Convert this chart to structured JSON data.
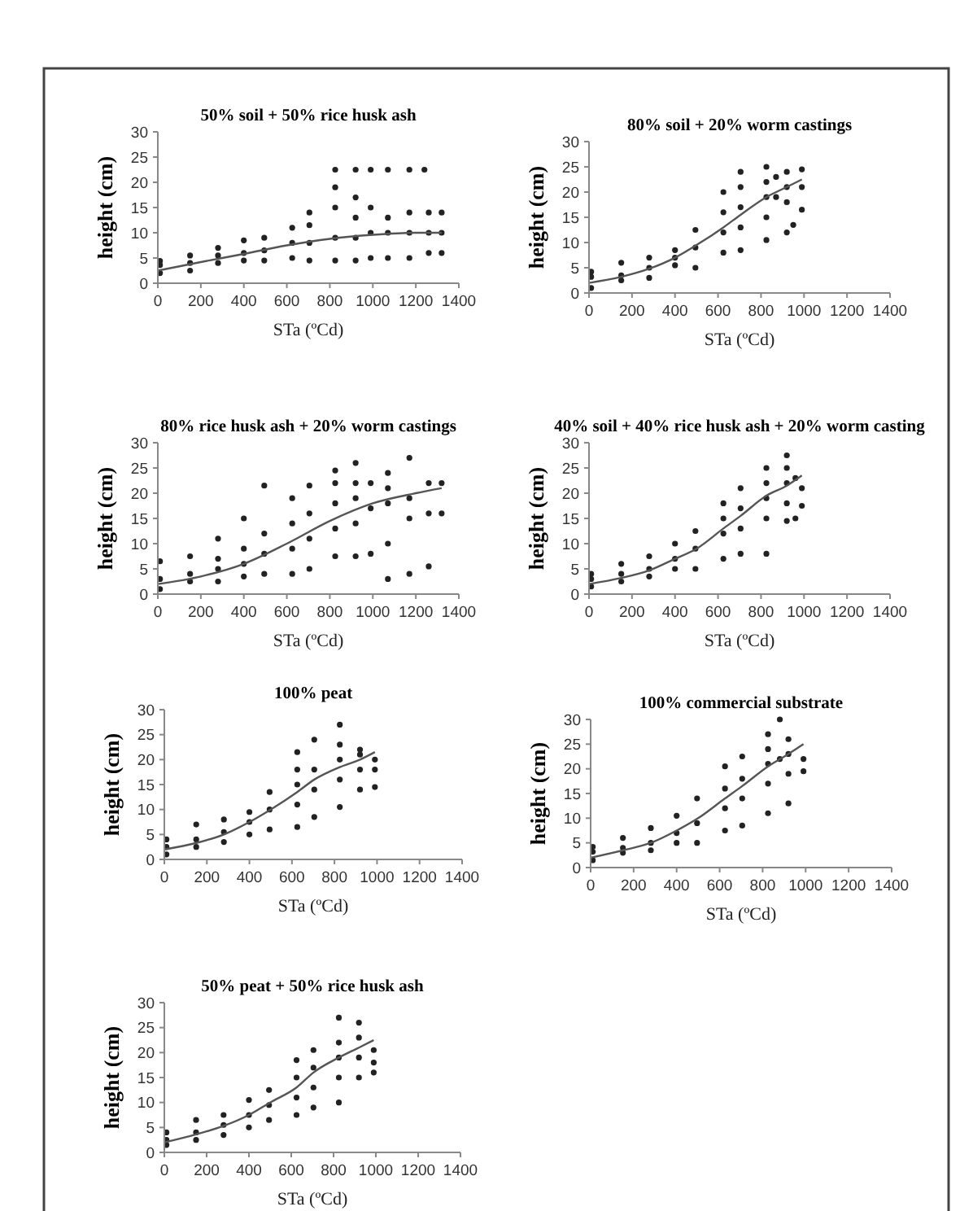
{
  "chart_data": [
    {
      "type": "scatter",
      "title": "50% soil + 50% rice husk ash",
      "xlabel": "STa (ºCd)",
      "ylabel": "height (cm)",
      "xlim": [
        0,
        1400
      ],
      "xticks": [
        0,
        200,
        400,
        600,
        800,
        1000,
        1200,
        1400
      ],
      "ylim": [
        0,
        30
      ],
      "yticks": [
        0,
        5,
        10,
        15,
        20,
        25,
        30
      ],
      "series": [
        {
          "type": "scatter",
          "color": "#222222",
          "x": [
            10,
            10,
            10,
            150,
            150,
            150,
            280,
            280,
            280,
            400,
            400,
            400,
            495,
            495,
            495,
            625,
            625,
            625,
            705,
            705,
            705,
            705,
            825,
            825,
            825,
            825,
            825,
            920,
            920,
            920,
            920,
            920,
            990,
            990,
            990,
            990,
            1070,
            1070,
            1070,
            1070,
            1170,
            1170,
            1170,
            1170,
            1240,
            1260,
            1260,
            1260,
            1320,
            1320,
            1320
          ],
          "values": [
            2,
            3.6,
            4.4,
            2.5,
            4,
            5.5,
            4,
            5.5,
            7,
            4.5,
            6,
            8.5,
            4.5,
            6.5,
            9,
            5,
            8,
            11,
            4.5,
            8,
            11.5,
            14,
            4.5,
            9,
            15,
            19,
            22.5,
            4.5,
            9,
            13,
            17,
            22.5,
            5,
            10,
            15,
            22.5,
            5,
            10,
            13,
            22.5,
            5,
            10,
            14,
            22.5,
            22.5,
            6,
            10,
            14,
            6,
            10,
            14
          ]
        },
        {
          "type": "line",
          "color": "#555555",
          "x": [
            0,
            200,
            400,
            600,
            800,
            1000,
            1200,
            1320
          ],
          "values": [
            2.5,
            4.2,
            5.8,
            7.5,
            8.8,
            9.6,
            10,
            10
          ]
        }
      ]
    },
    {
      "type": "scatter",
      "title": "80% soil + 20% worm castings",
      "xlabel": "STa (ºCd)",
      "ylabel": "height (cm)",
      "xlim": [
        0,
        1400
      ],
      "xticks": [
        0,
        200,
        400,
        600,
        800,
        1000,
        1200,
        1400
      ],
      "ylim": [
        0,
        30
      ],
      "yticks": [
        0,
        5,
        10,
        15,
        20,
        25,
        30
      ],
      "series": [
        {
          "type": "scatter",
          "color": "#222222",
          "x": [
            10,
            10,
            10,
            150,
            150,
            150,
            280,
            280,
            280,
            400,
            400,
            400,
            495,
            495,
            495,
            625,
            625,
            625,
            625,
            705,
            705,
            705,
            705,
            705,
            825,
            825,
            825,
            825,
            825,
            870,
            870,
            920,
            920,
            920,
            920,
            950,
            990,
            990,
            990
          ],
          "values": [
            1,
            3.2,
            4.2,
            2.5,
            3.5,
            6,
            3,
            5,
            7,
            5.5,
            7,
            8.5,
            5,
            9,
            12.5,
            8,
            12,
            16,
            20,
            8.5,
            13,
            17,
            21,
            24,
            10.5,
            15,
            19,
            22,
            25,
            19,
            23,
            12,
            18,
            21,
            24,
            13.5,
            16.5,
            21,
            24.5
          ]
        },
        {
          "type": "line",
          "color": "#555555",
          "x": [
            0,
            150,
            280,
            400,
            500,
            625,
            705,
            825,
            920,
            990
          ],
          "values": [
            2,
            3.2,
            4.8,
            7,
            9.5,
            13,
            15.5,
            19,
            21,
            22.5
          ]
        }
      ]
    },
    {
      "type": "scatter",
      "title": "80% rice husk ash + 20% worm castings",
      "xlabel": "STa (ºCd)",
      "ylabel": "height (cm)",
      "xlim": [
        0,
        1400
      ],
      "xticks": [
        0,
        200,
        400,
        600,
        800,
        1000,
        1200,
        1400
      ],
      "ylim": [
        0,
        30
      ],
      "yticks": [
        0,
        5,
        10,
        15,
        20,
        25,
        30
      ],
      "series": [
        {
          "type": "scatter",
          "color": "#222222",
          "x": [
            10,
            10,
            10,
            150,
            150,
            150,
            280,
            280,
            280,
            280,
            400,
            400,
            400,
            400,
            495,
            495,
            495,
            495,
            625,
            625,
            625,
            625,
            705,
            705,
            705,
            705,
            825,
            825,
            825,
            825,
            825,
            920,
            920,
            920,
            920,
            920,
            990,
            990,
            990,
            1070,
            1070,
            1070,
            1070,
            1070,
            1170,
            1170,
            1170,
            1170,
            1260,
            1260,
            1260,
            1320,
            1320
          ],
          "values": [
            1,
            3,
            6.5,
            2.5,
            4,
            7.5,
            2.5,
            5,
            7,
            11,
            3.5,
            6,
            9,
            15,
            4,
            8,
            12,
            21.5,
            4,
            9,
            14,
            19,
            5,
            11,
            16,
            21.5,
            7.5,
            13,
            18,
            22,
            24.5,
            7.5,
            14,
            19,
            22,
            26,
            8,
            17,
            22,
            3,
            10,
            18,
            21,
            24,
            4,
            15,
            19,
            27,
            5.5,
            16,
            22,
            16,
            22
          ]
        },
        {
          "type": "line",
          "color": "#555555",
          "x": [
            0,
            200,
            400,
            600,
            800,
            1000,
            1200,
            1320
          ],
          "values": [
            2,
            3.5,
            6,
            10,
            14.5,
            18,
            20,
            21
          ]
        }
      ]
    },
    {
      "type": "scatter",
      "title": "40% soil + 40% rice husk ash + 20% worm casting",
      "xlabel": "STa (ºCd)",
      "ylabel": "height (cm)",
      "xlim": [
        0,
        1400
      ],
      "xticks": [
        0,
        200,
        400,
        600,
        800,
        1000,
        1200,
        1400
      ],
      "ylim": [
        0,
        30
      ],
      "yticks": [
        0,
        5,
        10,
        15,
        20,
        25,
        30
      ],
      "series": [
        {
          "type": "scatter",
          "color": "#222222",
          "x": [
            10,
            10,
            10,
            150,
            150,
            150,
            280,
            280,
            280,
            400,
            400,
            400,
            495,
            495,
            495,
            625,
            625,
            625,
            625,
            705,
            705,
            705,
            705,
            825,
            825,
            825,
            825,
            825,
            920,
            920,
            920,
            920,
            920,
            960,
            960,
            990,
            990
          ],
          "values": [
            1.5,
            3,
            4,
            2.5,
            4,
            6,
            3.5,
            5,
            7.5,
            5,
            7,
            10,
            5,
            9,
            12.5,
            7,
            12,
            15,
            18,
            8,
            13,
            17,
            21,
            8,
            15,
            19,
            22,
            25,
            14.5,
            18,
            22,
            25,
            27.5,
            15,
            23,
            17.5,
            21
          ]
        },
        {
          "type": "line",
          "color": "#555555",
          "x": [
            0,
            150,
            280,
            400,
            500,
            625,
            705,
            825,
            920,
            990
          ],
          "values": [
            2,
            3.2,
            4.7,
            7,
            9,
            13,
            15.5,
            19.5,
            21.5,
            23.5
          ]
        }
      ]
    },
    {
      "type": "scatter",
      "title": "100% peat",
      "xlabel": "STa (ºCd)",
      "ylabel": "height (cm)",
      "xlim": [
        0,
        1400
      ],
      "xticks": [
        0,
        200,
        400,
        600,
        800,
        1000,
        1200,
        1400
      ],
      "ylim": [
        0,
        30
      ],
      "yticks": [
        0,
        5,
        10,
        15,
        20,
        25,
        30
      ],
      "series": [
        {
          "type": "scatter",
          "color": "#222222",
          "x": [
            10,
            10,
            10,
            150,
            150,
            150,
            280,
            280,
            280,
            400,
            400,
            400,
            495,
            495,
            495,
            625,
            625,
            625,
            625,
            625,
            705,
            705,
            705,
            705,
            825,
            825,
            825,
            825,
            825,
            920,
            920,
            920,
            920,
            990,
            990,
            990
          ],
          "values": [
            1,
            2.5,
            4,
            2.5,
            4,
            7,
            3.5,
            5.5,
            8,
            5,
            7.5,
            9.5,
            6,
            10,
            13.5,
            6.5,
            11,
            15,
            18,
            21.5,
            8.5,
            14,
            18,
            24,
            10.5,
            16,
            20,
            23,
            27,
            14,
            18,
            21,
            22,
            14.5,
            18,
            20
          ]
        },
        {
          "type": "line",
          "color": "#555555",
          "x": [
            0,
            150,
            280,
            400,
            500,
            625,
            705,
            825,
            920,
            990
          ],
          "values": [
            2,
            3.3,
            5,
            7.5,
            10,
            13.5,
            16,
            18.5,
            20,
            21.5
          ]
        }
      ]
    },
    {
      "type": "scatter",
      "title": "100% commercial substrate",
      "xlabel": "STa (ºCd)",
      "ylabel": "height (cm)",
      "xlim": [
        0,
        1400
      ],
      "xticks": [
        0,
        200,
        400,
        600,
        800,
        1000,
        1200,
        1400
      ],
      "ylim": [
        0,
        30
      ],
      "yticks": [
        0,
        5,
        10,
        15,
        20,
        25,
        30
      ],
      "series": [
        {
          "type": "scatter",
          "color": "#222222",
          "x": [
            10,
            10,
            10,
            150,
            150,
            150,
            280,
            280,
            280,
            400,
            400,
            400,
            495,
            495,
            495,
            625,
            625,
            625,
            625,
            705,
            705,
            705,
            705,
            825,
            825,
            825,
            825,
            825,
            880,
            880,
            920,
            920,
            920,
            920,
            990,
            990
          ],
          "values": [
            1.5,
            3.2,
            4.2,
            3,
            4,
            6,
            3.5,
            5,
            8,
            5,
            7,
            10.5,
            5,
            9,
            14,
            7.5,
            12,
            16,
            20.5,
            8.5,
            14,
            18,
            22.5,
            11,
            17,
            21,
            24,
            27,
            22,
            30,
            13,
            19,
            23,
            26,
            19.5,
            22
          ]
        },
        {
          "type": "line",
          "color": "#555555",
          "x": [
            0,
            150,
            280,
            400,
            500,
            625,
            705,
            825,
            920,
            990
          ],
          "values": [
            2,
            3.5,
            5,
            7.5,
            10,
            14,
            16.5,
            20.5,
            23,
            25
          ]
        }
      ]
    },
    {
      "type": "scatter",
      "title": "50% peat + 50% rice husk ash",
      "xlabel": "STa (ºCd)",
      "ylabel": "height (cm)",
      "xlim": [
        0,
        1400
      ],
      "xticks": [
        0,
        200,
        400,
        600,
        800,
        1000,
        1200,
        1400
      ],
      "ylim": [
        0,
        30
      ],
      "yticks": [
        0,
        5,
        10,
        15,
        20,
        25,
        30
      ],
      "series": [
        {
          "type": "scatter",
          "color": "#222222",
          "x": [
            10,
            10,
            10,
            150,
            150,
            150,
            280,
            280,
            280,
            400,
            400,
            400,
            495,
            495,
            495,
            625,
            625,
            625,
            625,
            705,
            705,
            705,
            705,
            825,
            825,
            825,
            825,
            825,
            920,
            920,
            920,
            920,
            990,
            990,
            990
          ],
          "values": [
            1.5,
            2.5,
            4,
            2.5,
            4,
            6.5,
            3.5,
            5.5,
            7.5,
            5,
            7.5,
            10.5,
            6.5,
            9.5,
            12.5,
            7.5,
            11,
            15,
            18.5,
            9,
            13,
            17,
            20.5,
            10,
            15,
            19,
            22,
            27,
            15,
            19,
            23,
            26,
            16,
            18,
            20.5
          ]
        },
        {
          "type": "line",
          "color": "#555555",
          "x": [
            0,
            150,
            280,
            400,
            500,
            625,
            705,
            825,
            920,
            990
          ],
          "values": [
            2,
            3.6,
            5.3,
            7.5,
            10,
            13,
            16,
            19,
            21,
            22.5
          ]
        }
      ]
    }
  ]
}
